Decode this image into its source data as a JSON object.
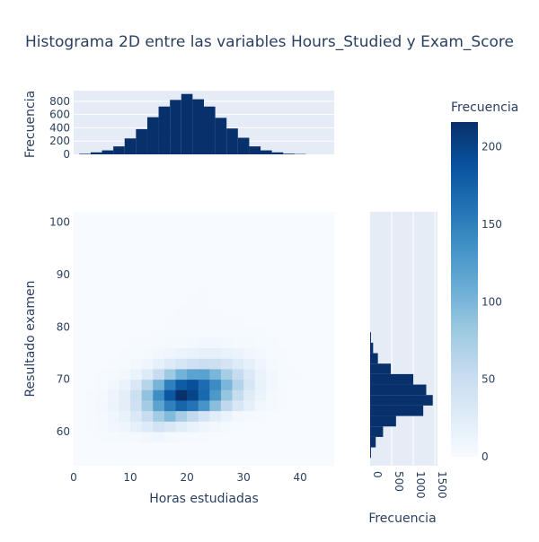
{
  "chart_data": {
    "type": "heatmap",
    "title": "Histograma 2D entre las variables Hours_Studied y Exam_Score",
    "xlabel": "Horas estudiadas",
    "ylabel": "Resultado examen",
    "x_range": [
      0,
      46
    ],
    "y_range": [
      53.5,
      102
    ],
    "x_ticks": [
      "0",
      "10",
      "20",
      "30",
      "40"
    ],
    "y_ticks": [
      "60",
      "70",
      "80",
      "90",
      "100"
    ],
    "colorbar": {
      "title": "Frecuencia",
      "range": [
        0,
        216
      ],
      "ticks": [
        "0",
        "50",
        "100",
        "150",
        "200"
      ],
      "colorscale": [
        "#f7fbff",
        "#deebf7",
        "#c6dbef",
        "#9ecae1",
        "#6baed6",
        "#4292c6",
        "#2171b5",
        "#08519c",
        "#08306b"
      ]
    },
    "x_bin_width": 2,
    "y_bin_width": 2,
    "x_bin_starts": [
      0,
      2,
      4,
      6,
      8,
      10,
      12,
      14,
      16,
      18,
      20,
      22,
      24,
      26,
      28,
      30,
      32,
      34,
      36,
      38,
      40,
      42,
      44
    ],
    "y_bin_starts": [
      54,
      56,
      58,
      60,
      62,
      64,
      66,
      68,
      70,
      72,
      74,
      76,
      78,
      80,
      82,
      84,
      86,
      88,
      90,
      92,
      94,
      96,
      98,
      100
    ],
    "heat_values": [
      [
        0,
        0,
        0,
        0,
        0,
        0,
        0,
        0,
        0,
        0,
        0,
        0,
        0,
        0,
        0,
        0,
        0,
        0,
        0,
        0,
        0,
        0,
        0
      ],
      [
        0,
        0,
        0,
        0,
        0,
        0,
        0,
        0,
        0,
        0,
        0,
        0,
        0,
        0,
        0,
        0,
        0,
        0,
        0,
        0,
        0,
        0,
        0
      ],
      [
        0,
        0,
        1,
        2,
        3,
        4,
        6,
        8,
        5,
        3,
        2,
        1,
        0,
        0,
        0,
        0,
        0,
        0,
        0,
        0,
        0,
        0,
        0
      ],
      [
        0,
        1,
        3,
        6,
        10,
        18,
        28,
        40,
        32,
        24,
        16,
        10,
        6,
        3,
        1,
        0,
        0,
        0,
        0,
        0,
        0,
        0,
        0
      ],
      [
        0,
        1,
        4,
        9,
        16,
        30,
        50,
        78,
        96,
        74,
        56,
        38,
        24,
        14,
        7,
        3,
        1,
        0,
        0,
        0,
        0,
        0,
        0
      ],
      [
        0,
        1,
        5,
        12,
        22,
        44,
        78,
        118,
        150,
        172,
        160,
        132,
        92,
        58,
        34,
        18,
        7,
        3,
        1,
        0,
        0,
        0,
        0
      ],
      [
        0,
        1,
        4,
        11,
        22,
        46,
        88,
        138,
        184,
        216,
        200,
        170,
        128,
        86,
        52,
        26,
        12,
        4,
        1,
        0,
        0,
        0,
        0
      ],
      [
        0,
        0,
        2,
        6,
        14,
        32,
        64,
        102,
        150,
        180,
        190,
        166,
        140,
        100,
        66,
        36,
        16,
        6,
        2,
        0,
        0,
        0,
        0
      ],
      [
        0,
        0,
        1,
        3,
        6,
        14,
        28,
        52,
        80,
        104,
        118,
        120,
        100,
        76,
        52,
        30,
        14,
        6,
        2,
        1,
        0,
        0,
        0
      ],
      [
        0,
        0,
        0,
        1,
        2,
        5,
        10,
        18,
        28,
        36,
        44,
        48,
        46,
        38,
        28,
        18,
        10,
        4,
        1,
        0,
        0,
        0,
        0
      ],
      [
        0,
        0,
        0,
        0,
        1,
        2,
        3,
        6,
        10,
        12,
        16,
        18,
        18,
        16,
        12,
        8,
        5,
        2,
        1,
        0,
        0,
        0,
        0
      ],
      [
        0,
        0,
        0,
        0,
        0,
        1,
        1,
        2,
        3,
        4,
        5,
        6,
        6,
        5,
        4,
        3,
        2,
        1,
        0,
        0,
        0,
        0,
        0
      ],
      [
        0,
        0,
        0,
        0,
        0,
        0,
        0,
        1,
        1,
        1,
        2,
        2,
        2,
        2,
        1,
        1,
        1,
        0,
        0,
        0,
        0,
        0,
        0
      ],
      [
        0,
        0,
        0,
        0,
        0,
        0,
        0,
        0,
        1,
        1,
        1,
        1,
        1,
        1,
        1,
        0,
        0,
        0,
        0,
        0,
        0,
        0,
        0
      ],
      [
        0,
        0,
        0,
        0,
        0,
        0,
        0,
        0,
        0,
        1,
        1,
        1,
        1,
        0,
        0,
        0,
        0,
        0,
        0,
        0,
        0,
        0,
        0
      ],
      [
        0,
        0,
        0,
        0,
        0,
        0,
        0,
        0,
        0,
        0,
        1,
        1,
        0,
        0,
        0,
        0,
        0,
        0,
        0,
        0,
        0,
        0,
        0
      ],
      [
        0,
        0,
        0,
        0,
        0,
        0,
        0,
        0,
        0,
        0,
        0,
        1,
        0,
        0,
        0,
        0,
        0,
        0,
        0,
        0,
        0,
        0,
        0
      ],
      [
        0,
        0,
        0,
        0,
        0,
        0,
        0,
        0,
        0,
        0,
        0,
        0,
        0,
        0,
        0,
        0,
        0,
        0,
        0,
        0,
        0,
        0,
        0
      ],
      [
        0,
        0,
        0,
        0,
        0,
        0,
        0,
        0,
        0,
        0,
        0,
        0,
        0,
        0,
        0,
        0,
        0,
        0,
        0,
        0,
        0,
        0,
        0
      ],
      [
        0,
        0,
        0,
        0,
        0,
        0,
        0,
        0,
        0,
        0,
        0,
        0,
        0,
        0,
        0,
        0,
        0,
        0,
        0,
        0,
        0,
        0,
        0
      ],
      [
        0,
        0,
        0,
        0,
        0,
        0,
        0,
        0,
        0,
        0,
        0,
        0,
        0,
        0,
        0,
        0,
        0,
        0,
        0,
        0,
        0,
        0,
        0
      ],
      [
        0,
        0,
        0,
        0,
        0,
        0,
        0,
        0,
        0,
        0,
        0,
        0,
        0,
        0,
        0,
        0,
        0,
        0,
        0,
        0,
        0,
        0,
        0
      ],
      [
        0,
        0,
        0,
        0,
        0,
        0,
        0,
        0,
        0,
        0,
        0,
        0,
        0,
        0,
        0,
        0,
        0,
        0,
        0,
        0,
        0,
        0,
        0
      ],
      [
        0,
        0,
        0,
        0,
        0,
        0,
        0,
        0,
        0,
        0,
        0,
        0,
        0,
        0,
        0,
        0,
        0,
        0,
        0,
        0,
        0,
        0,
        0
      ]
    ],
    "marginal_x": {
      "title": "Frecuencia",
      "range": [
        0,
        960
      ],
      "ticks": [
        "0",
        "200",
        "400",
        "600",
        "800"
      ],
      "tick_values": [
        0,
        200,
        400,
        600,
        800
      ],
      "bin_starts": [
        1,
        3,
        5,
        7,
        9,
        11,
        13,
        15,
        17,
        19,
        21,
        23,
        25,
        27,
        29,
        31,
        33,
        35,
        37,
        39
      ],
      "bin_width": 2,
      "values": [
        8,
        30,
        60,
        120,
        240,
        380,
        560,
        720,
        820,
        910,
        830,
        720,
        550,
        390,
        250,
        120,
        60,
        30,
        10,
        5
      ],
      "color": "#08306b"
    },
    "marginal_y": {
      "title": "Frecuencia",
      "range": [
        0,
        1560
      ],
      "ticks": [
        "0",
        "500",
        "1000",
        "1500"
      ],
      "tick_values": [
        0,
        500,
        1000,
        1500
      ],
      "bin_starts": [
        55,
        57,
        59,
        61,
        63,
        65,
        67,
        69,
        71,
        73,
        75,
        77
      ],
      "bin_width": 2,
      "values": [
        20,
        130,
        300,
        600,
        1230,
        1450,
        1300,
        1000,
        480,
        180,
        70,
        20
      ],
      "color": "#08306b"
    }
  }
}
